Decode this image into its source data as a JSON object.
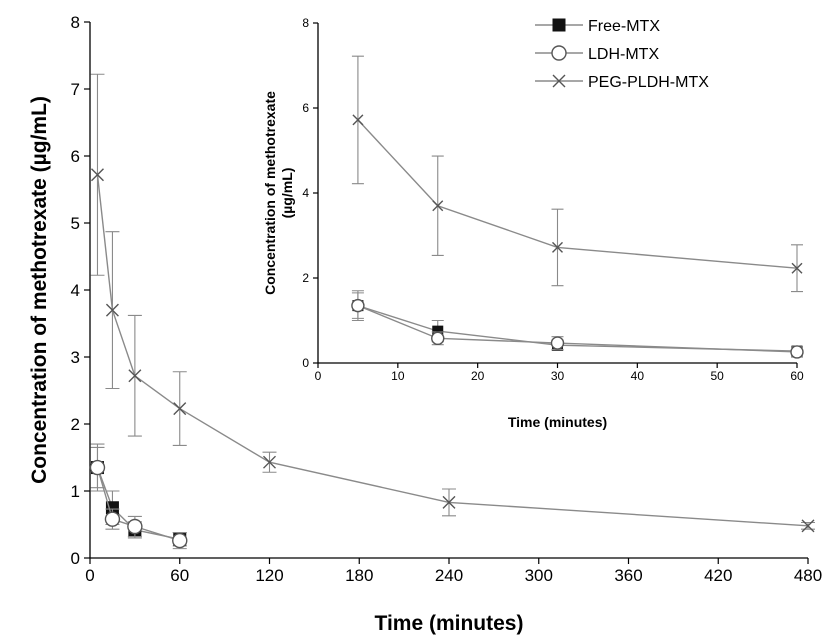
{
  "chart_data": [
    {
      "type": "line",
      "xlabel": "Time (minutes)",
      "ylabel": "Concentration of methotrexate (µg/mL)",
      "xlim": [
        0,
        480
      ],
      "ylim": [
        0,
        8
      ],
      "xticks": [
        0,
        60,
        120,
        180,
        240,
        300,
        360,
        420,
        480
      ],
      "yticks": [
        0,
        1,
        2,
        3,
        4,
        5,
        6,
        7,
        8
      ],
      "grid": false,
      "series": [
        {
          "name": "Free-MTX",
          "marker": "filled-square",
          "x": [
            5,
            15,
            30,
            60
          ],
          "y": [
            1.35,
            0.75,
            0.42,
            0.28
          ],
          "err": [
            0.3,
            0.25,
            0.12,
            0.1
          ]
        },
        {
          "name": "LDH-MTX",
          "marker": "open-circle",
          "x": [
            5,
            15,
            30,
            60
          ],
          "y": [
            1.35,
            0.58,
            0.47,
            0.26
          ],
          "err": [
            0.35,
            0.15,
            0.15,
            0.12
          ]
        },
        {
          "name": "PEG-PLDH-MTX",
          "marker": "cross",
          "x": [
            5,
            15,
            30,
            60,
            120,
            240,
            480
          ],
          "y": [
            5.72,
            3.7,
            2.72,
            2.23,
            1.43,
            0.83,
            0.48
          ],
          "err": [
            1.5,
            1.17,
            0.9,
            0.55,
            0.15,
            0.2,
            0.05
          ]
        }
      ]
    },
    {
      "type": "line",
      "xlabel": "Time (minutes)",
      "ylabel": "Concentration of methotrexate (µg/mL)",
      "xlim": [
        0,
        60
      ],
      "ylim": [
        0,
        8
      ],
      "xticks": [
        0,
        10,
        20,
        30,
        40,
        50,
        60
      ],
      "yticks": [
        0,
        2,
        4,
        6,
        8
      ],
      "legend": "top-left",
      "series": [
        {
          "name": "Free-MTX",
          "marker": "filled-square",
          "x": [
            5,
            15,
            30,
            60
          ],
          "y": [
            1.35,
            0.75,
            0.42,
            0.28
          ],
          "err": [
            0.3,
            0.25,
            0.12,
            0.1
          ]
        },
        {
          "name": "LDH-MTX",
          "marker": "open-circle",
          "x": [
            5,
            15,
            30,
            60
          ],
          "y": [
            1.35,
            0.58,
            0.47,
            0.26
          ],
          "err": [
            0.35,
            0.15,
            0.15,
            0.12
          ]
        },
        {
          "name": "PEG-PLDH-MTX",
          "marker": "cross",
          "x": [
            5,
            15,
            30,
            60
          ],
          "y": [
            5.72,
            3.7,
            2.72,
            2.23
          ],
          "err": [
            1.5,
            1.17,
            0.9,
            0.55
          ]
        }
      ]
    }
  ]
}
